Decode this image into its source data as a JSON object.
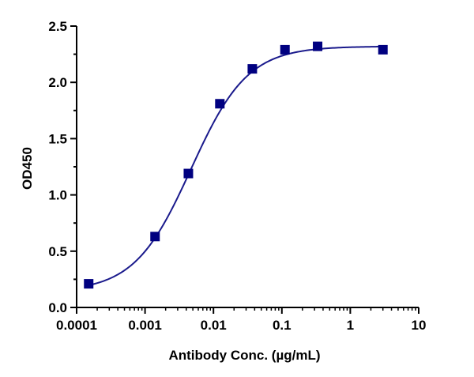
{
  "chart_data": {
    "type": "scatter",
    "title": "",
    "xlabel": "Antibody Conc. (µg/mL)",
    "ylabel": "OD450",
    "x_scale": "log",
    "xlim": [
      0.0001,
      10
    ],
    "ylim": [
      0,
      2.5
    ],
    "x_ticks": [
      {
        "value": 0.0001,
        "label": "0.0001"
      },
      {
        "value": 0.001,
        "label": "0.001"
      },
      {
        "value": 0.01,
        "label": "0.01"
      },
      {
        "value": 0.1,
        "label": "0.1"
      },
      {
        "value": 1,
        "label": "1"
      },
      {
        "value": 10,
        "label": "10"
      }
    ],
    "y_ticks": [
      {
        "value": 0.0,
        "label": "0.0"
      },
      {
        "value": 0.5,
        "label": "0.5"
      },
      {
        "value": 1.0,
        "label": "1.0"
      },
      {
        "value": 1.5,
        "label": "1.5"
      },
      {
        "value": 2.0,
        "label": "2.0"
      },
      {
        "value": 2.5,
        "label": "2.5"
      }
    ],
    "grid": false,
    "legend": "none",
    "series": [
      {
        "marker": "square",
        "color": "#000080",
        "fit": "4PL sigmoid",
        "points": [
          {
            "x": 0.00015,
            "y": 0.21
          },
          {
            "x": 0.0014,
            "y": 0.63
          },
          {
            "x": 0.0043,
            "y": 1.19
          },
          {
            "x": 0.0124,
            "y": 1.81
          },
          {
            "x": 0.037,
            "y": 2.12
          },
          {
            "x": 0.111,
            "y": 2.29
          },
          {
            "x": 0.333,
            "y": 2.32
          },
          {
            "x": 3.0,
            "y": 2.29
          }
        ]
      }
    ],
    "curve_color": "#1a1a8c"
  }
}
